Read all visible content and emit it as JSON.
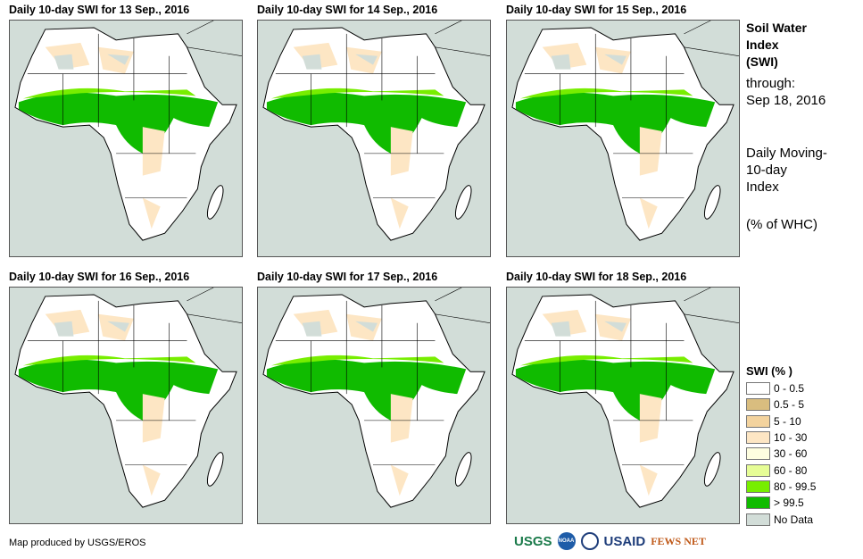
{
  "panels": [
    {
      "title": "Daily 10-day SWI for 13 Sep., 2016"
    },
    {
      "title": "Daily 10-day SWI for 14 Sep., 2016"
    },
    {
      "title": "Daily 10-day SWI for 15 Sep., 2016"
    },
    {
      "title": "Daily 10-day SWI for 16 Sep., 2016"
    },
    {
      "title": "Daily 10-day SWI for 17 Sep., 2016"
    },
    {
      "title": "Daily 10-day SWI for 18 Sep., 2016"
    }
  ],
  "side": {
    "title1": "Soil Water",
    "title2": "Index",
    "title3": "(SWI)",
    "through": "through:",
    "date": "Sep 18, 2016",
    "desc1": "Daily Moving-",
    "desc2": "10-day",
    "desc3": "Index",
    "unit": "(% of WHC)"
  },
  "legend": {
    "title": "SWI (% )",
    "items": [
      {
        "label": "0 - 0.5",
        "color": "#ffffff"
      },
      {
        "label": "0.5 - 5",
        "color": "#d9bd7f"
      },
      {
        "label": "5 - 10",
        "color": "#f3d39e"
      },
      {
        "label": "10 - 30",
        "color": "#fde6c4"
      },
      {
        "label": "30 - 60",
        "color": "#fefee0"
      },
      {
        "label": "60 - 80",
        "color": "#e6fd96"
      },
      {
        "label": "80 - 99.5",
        "color": "#77ee00"
      },
      {
        "label": "> 99.5",
        "color": "#10bb00"
      },
      {
        "label": "No Data",
        "color": "#d2ddd8"
      }
    ]
  },
  "credit": "Map produced by USGS/EROS",
  "logos": [
    "USGS",
    "NOAA",
    "USAID",
    "FEWS NET"
  ]
}
